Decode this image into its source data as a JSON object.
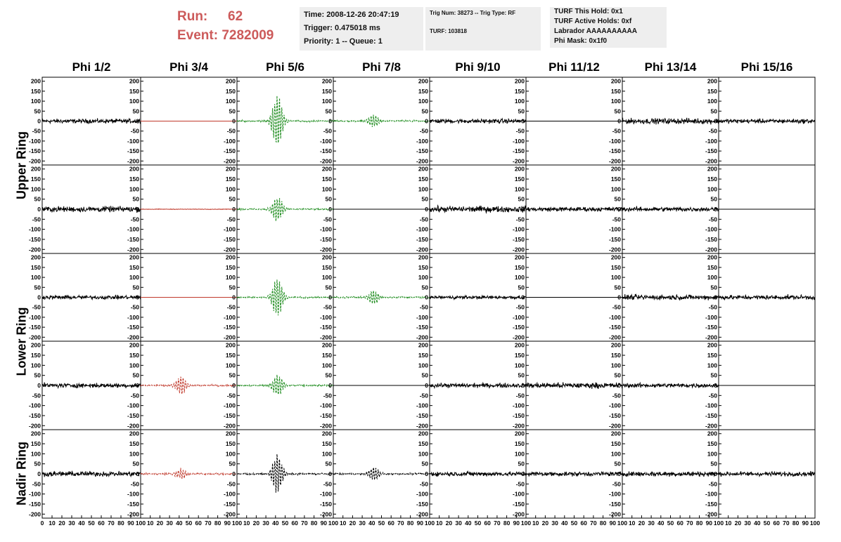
{
  "header": {
    "run_label": "Run:",
    "run_value": "62",
    "event_label": "Event:",
    "event_value": "7282009",
    "time_box": [
      "Time: 2008-12-26 20:47:19",
      "Trigger: 0.475018 ms",
      "Priority: 1 -- Queue: 1"
    ],
    "trig_box": [
      "Trig Num: 38273 -- Trig Type: RF",
      "TURF: 103818"
    ],
    "turf_box": [
      "TURF This Hold: 0x1",
      "TURF Active Holds: 0xf",
      "Labrador AAAAAAAAAA",
      "Phi Mask: 0x1f0"
    ]
  },
  "chart_data": {
    "type": "line",
    "columns": [
      "Phi 1/2",
      "Phi 3/4",
      "Phi 5/6",
      "Phi 7/8",
      "Phi 9/10",
      "Phi 11/12",
      "Phi 13/14",
      "Phi 15/16"
    ],
    "ring_labels": [
      "Upper Ring",
      "Lower Ring",
      "Nadir Ring"
    ],
    "xlim": [
      0,
      100
    ],
    "ylim": [
      -220,
      220
    ],
    "x_ticks": [
      0,
      10,
      20,
      30,
      40,
      50,
      60,
      70,
      80,
      90,
      100
    ],
    "y_ticks": [
      200,
      150,
      100,
      50,
      0,
      -50,
      -100,
      -150,
      -200
    ],
    "colors": {
      "black": "#000000",
      "red": "#c0392b",
      "green": "#1e8c1e"
    },
    "rows": [
      [
        "noise:16",
        "flat-red",
        "pulse-green:150",
        "pulse-green:40",
        "noise:16",
        "flat",
        "noise:20",
        "noise:16"
      ],
      [
        "noise:20",
        "flat-red-noise",
        "pulse-green:70",
        "flat",
        "noise:22",
        "noise:16",
        "noise:16",
        "flat"
      ],
      [
        "noise:14",
        "flat-red",
        "pulse-green:110",
        "pulse-green:40",
        "noise:12",
        "flat",
        "noise:18",
        "noise:16"
      ],
      [
        "noise:16",
        "pulse-red:50",
        "pulse-green:60",
        "flat",
        "noise:16",
        "noise:20",
        "noise:16",
        "flat"
      ],
      [
        "noise:18",
        "pulse-red:30",
        "pulse-black:110",
        "pulse-black:40",
        "noise:16",
        "noise:16",
        "noise:18",
        "noise:16"
      ]
    ]
  }
}
